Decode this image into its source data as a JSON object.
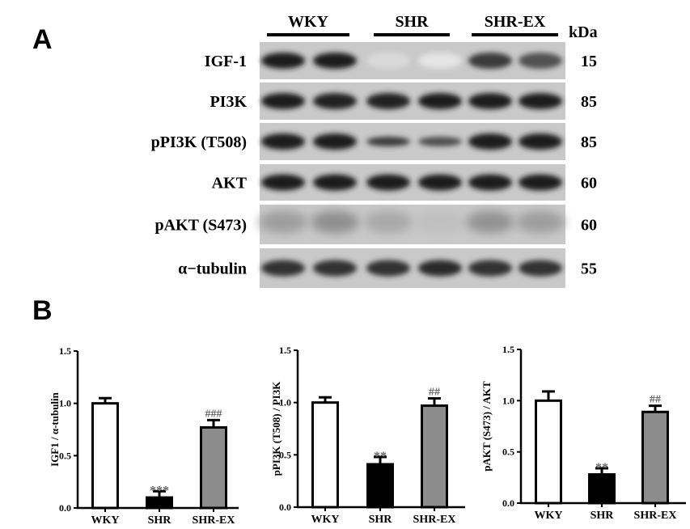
{
  "panel_a": {
    "label": "A",
    "groups": [
      "WKY",
      "SHR",
      "SHR-EX"
    ],
    "kda_header": "kDa",
    "rows": [
      {
        "protein": "IGF-1",
        "kda": "15",
        "band_intensity": [
          0.95,
          0.95,
          0.08,
          0.03,
          0.8,
          0.7
        ]
      },
      {
        "protein": "PI3K",
        "kda": "85",
        "band_intensity": [
          0.95,
          0.92,
          0.92,
          0.95,
          0.95,
          0.95
        ]
      },
      {
        "protein": "pPI3K (T508)",
        "kda": "85",
        "band_intensity": [
          0.95,
          0.93,
          0.8,
          0.72,
          0.95,
          0.95
        ]
      },
      {
        "protein": "AKT",
        "kda": "60",
        "band_intensity": [
          0.95,
          0.93,
          0.93,
          0.95,
          0.95,
          0.93
        ]
      },
      {
        "protein": "pAKT (S473)",
        "kda": "60",
        "band_intensity": [
          0.35,
          0.42,
          0.3,
          0.2,
          0.4,
          0.35
        ]
      },
      {
        "protein": "α−tubulin",
        "kda": "55",
        "band_intensity": [
          0.85,
          0.85,
          0.85,
          0.87,
          0.85,
          0.85
        ]
      }
    ]
  },
  "panel_b": {
    "label": "B"
  },
  "colors": {
    "WKY": "#ffffff",
    "SHR": "#000000",
    "SHR-EX": "#8c8c8c",
    "annotation": "#666666"
  },
  "chart_data": [
    {
      "type": "bar",
      "title": "",
      "xlabel": "",
      "ylabel": "IGF1 / α-tubulin",
      "categories": [
        "WKY",
        "SHR",
        "SHR-EX"
      ],
      "values": [
        1.0,
        0.1,
        0.77
      ],
      "errors": [
        0.05,
        0.06,
        0.07
      ],
      "annotations": [
        "",
        "***",
        "###"
      ],
      "ylim": [
        0,
        1.5
      ],
      "yticks": [
        "0.0",
        "0.5",
        "1.0",
        "1.5"
      ],
      "grid": false
    },
    {
      "type": "bar",
      "title": "",
      "xlabel": "",
      "ylabel": "pPI3K (T508) / PI3K",
      "categories": [
        "WKY",
        "SHR",
        "SHR-EX"
      ],
      "values": [
        1.0,
        0.41,
        0.97
      ],
      "errors": [
        0.05,
        0.07,
        0.07
      ],
      "annotations": [
        "",
        "**",
        "##"
      ],
      "ylim": [
        0,
        1.5
      ],
      "yticks": [
        "0.0",
        "0.5",
        "1.0",
        "1.5"
      ],
      "grid": false
    },
    {
      "type": "bar",
      "title": "",
      "xlabel": "",
      "ylabel": "pAKT (S473) / AKT",
      "categories": [
        "WKY",
        "SHR",
        "SHR-EX"
      ],
      "values": [
        1.0,
        0.28,
        0.89
      ],
      "errors": [
        0.09,
        0.06,
        0.06
      ],
      "annotations": [
        "",
        "**",
        "##"
      ],
      "ylim": [
        0,
        1.5
      ],
      "yticks": [
        "0.0",
        "0.5",
        "1.0",
        "1.5"
      ],
      "grid": false
    }
  ]
}
